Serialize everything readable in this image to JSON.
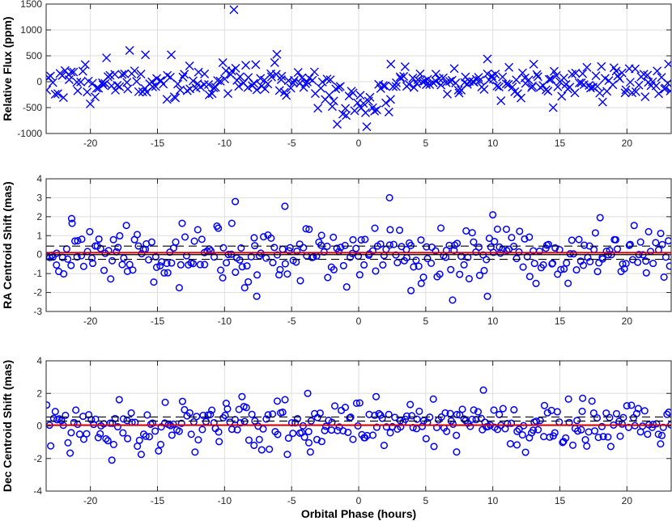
{
  "chart_data": [
    {
      "type": "scatter",
      "panel": "flux",
      "marker": "x",
      "color": "#0000ff",
      "xlabel": "",
      "ylabel": "Relative Flux (ppm)",
      "xlim": [
        -23.3,
        23.3
      ],
      "ylim": [
        -1000,
        1500
      ],
      "xticks": [
        -20,
        -15,
        -10,
        -5,
        0,
        5,
        10,
        15,
        20
      ],
      "yticks": [
        -1000,
        -500,
        0,
        500,
        1000,
        1500
      ],
      "grid": true,
      "seed": 11,
      "n_points": 300,
      "noise_sd": 170,
      "transit": {
        "center": 0,
        "depth": 520,
        "half_width": 3.6
      },
      "points": [
        [
          -9.3,
          1390
        ],
        [
          -15.9,
          520
        ],
        [
          -6.1,
          530
        ],
        [
          -18.8,
          460
        ],
        [
          9.6,
          440
        ],
        [
          23.1,
          340
        ],
        [
          -1.6,
          -820
        ],
        [
          0.6,
          -870
        ],
        [
          2.4,
          340
        ],
        [
          14.5,
          -500
        ]
      ],
      "reference_lines": []
    },
    {
      "type": "scatter",
      "panel": "ra",
      "marker": "o",
      "color": "#0000ff",
      "xlabel": "",
      "ylabel": "RA Centroid Shift (mas)",
      "xlim": [
        -23.3,
        23.3
      ],
      "ylim": [
        -3,
        4
      ],
      "xticks": [
        -20,
        -15,
        -10,
        -5,
        0,
        5,
        10,
        15,
        20
      ],
      "yticks": [
        -3,
        -2,
        -1,
        0,
        1,
        2,
        3,
        4
      ],
      "grid": true,
      "seed": 29,
      "n_points": 300,
      "noise_sd": 0.72,
      "points": [
        [
          2.3,
          3.0
        ],
        [
          -9.2,
          2.8
        ],
        [
          -5.5,
          2.55
        ],
        [
          10.0,
          2.1
        ],
        [
          7.0,
          -2.4
        ],
        [
          -7.6,
          -2.2
        ],
        [
          9.6,
          -2.2
        ],
        [
          18.0,
          1.95
        ],
        [
          -21.4,
          1.9
        ],
        [
          3.9,
          -1.9
        ]
      ],
      "reference_lines": [
        {
          "y": 0.1,
          "color": "#d40000",
          "style": "solid"
        },
        {
          "y": 0.0,
          "color": "#000000",
          "style": "solid"
        },
        {
          "y": 0.45,
          "color": "#000000",
          "style": "dashed"
        },
        {
          "y": -0.25,
          "color": "#000000",
          "style": "dashed"
        }
      ]
    },
    {
      "type": "scatter",
      "panel": "dec",
      "marker": "o",
      "color": "#0000ff",
      "xlabel": "Orbital Phase (hours)",
      "ylabel": "Dec Centroid Shift (mas)",
      "xlim": [
        -23.3,
        23.3
      ],
      "ylim": [
        -4,
        4
      ],
      "xticks": [
        -20,
        -15,
        -10,
        -5,
        0,
        5,
        10,
        15,
        20
      ],
      "yticks": [
        -4,
        -2,
        0,
        2,
        4
      ],
      "grid": true,
      "seed": 53,
      "n_points": 300,
      "noise_sd": 0.72,
      "points": [
        [
          9.3,
          2.2
        ],
        [
          -3.8,
          2.0
        ],
        [
          -8.7,
          1.8
        ],
        [
          1.3,
          1.8
        ],
        [
          16.7,
          1.7
        ],
        [
          -18.4,
          -2.1
        ],
        [
          -3.6,
          -1.6
        ],
        [
          7.3,
          -1.6
        ]
      ],
      "reference_lines": [
        {
          "y": 0.05,
          "color": "#d40000",
          "style": "solid"
        },
        {
          "y": 0.55,
          "color": "#000000",
          "style": "dashed"
        },
        {
          "y": 0.3,
          "color": "#000000",
          "style": "dashed"
        }
      ]
    }
  ]
}
